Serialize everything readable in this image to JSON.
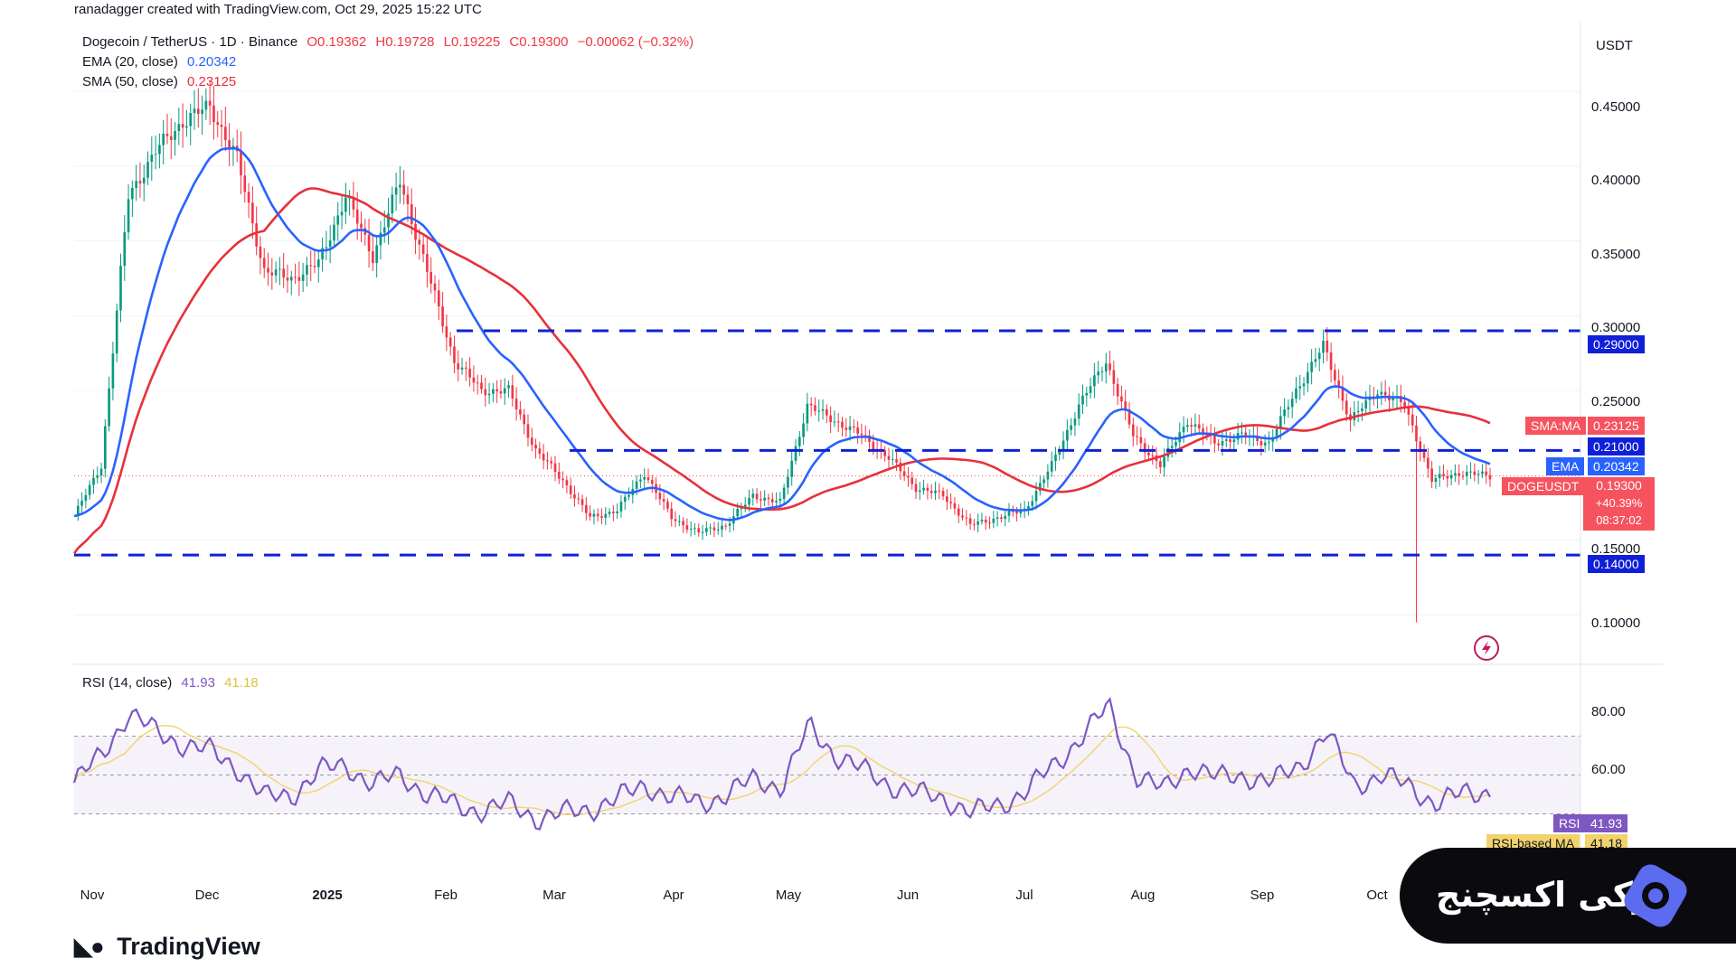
{
  "attribution": "ranadagger created with TradingView.com, Oct 29, 2025 15:22 UTC",
  "symbol_line": {
    "name": "Dogecoin / TetherUS · 1D · Binance",
    "open": "O0.19362",
    "high": "H0.19728",
    "low": "L0.19225",
    "close": "C0.19300",
    "change": "−0.00062 (−0.32%)"
  },
  "ema_legend": {
    "label": "EMA (20, close)",
    "value": "0.20342"
  },
  "sma_legend": {
    "label": "SMA (50, close)",
    "value": "0.23125"
  },
  "rsi_legend": {
    "label": "RSI (14, close)",
    "value": "41.93",
    "ma_value": "41.18"
  },
  "currency": "USDT",
  "price_axis_ticks": [
    "0.45000",
    "0.40000",
    "0.35000",
    "0.30000",
    "0.25000",
    "0.15000",
    "0.10000"
  ],
  "rsi_axis_ticks": [
    "80.00",
    "60.00"
  ],
  "x_ticks": [
    "Nov",
    "Dec",
    "2025",
    "Feb",
    "Mar",
    "Apr",
    "May",
    "Jun",
    "Jul",
    "Aug",
    "Sep",
    "Oct"
  ],
  "level_tags": {
    "upper": "0.29000",
    "middle": "0.21000",
    "lower": "0.14000"
  },
  "sma_tag": {
    "label": "SMA:MA",
    "value": "0.23125"
  },
  "ema_tag": {
    "label": "EMA",
    "value": "0.20342"
  },
  "price_tag": {
    "label": "DOGEUSDT",
    "value": "0.19300",
    "change": "+40.39%",
    "countdown": "08:37:02"
  },
  "rsi_tag": {
    "label": "RSI",
    "value": "41.93"
  },
  "rsi_ma_tag": {
    "label": "RSI-based MA",
    "value": "41.18"
  },
  "brand": "TradingView",
  "badge_text": "اوکی اکسچنج",
  "colors": {
    "ema": "#2962ff",
    "sma": "#e8303a",
    "levels": "#1020d8",
    "rsi": "#7e57c2",
    "rsi_ma": "#f2d36b",
    "candle_up": "#089981",
    "candle_down": "#f23645",
    "price_tag": "#f7525f"
  },
  "chart_data": {
    "type": "candlestick",
    "title": "Dogecoin / TetherUS · 1D · Binance",
    "y_range": [
      0.07,
      0.49
    ],
    "horizontal_levels": [
      0.29,
      0.21,
      0.14
    ],
    "close_series_weekly": [
      {
        "date": "2024-10-29",
        "close": 0.166
      },
      {
        "date": "2024-11-05",
        "close": 0.2
      },
      {
        "date": "2024-11-12",
        "close": 0.38
      },
      {
        "date": "2024-11-19",
        "close": 0.41
      },
      {
        "date": "2024-11-26",
        "close": 0.43
      },
      {
        "date": "2024-12-03",
        "close": 0.44
      },
      {
        "date": "2024-12-10",
        "close": 0.405
      },
      {
        "date": "2024-12-17",
        "close": 0.33
      },
      {
        "date": "2024-12-24",
        "close": 0.325
      },
      {
        "date": "2024-12-31",
        "close": 0.335
      },
      {
        "date": "2025-01-07",
        "close": 0.38
      },
      {
        "date": "2025-01-14",
        "close": 0.34
      },
      {
        "date": "2025-01-21",
        "close": 0.39
      },
      {
        "date": "2025-01-28",
        "close": 0.33
      },
      {
        "date": "2025-02-04",
        "close": 0.27
      },
      {
        "date": "2025-02-11",
        "close": 0.25
      },
      {
        "date": "2025-02-18",
        "close": 0.25
      },
      {
        "date": "2025-02-25",
        "close": 0.21
      },
      {
        "date": "2025-03-04",
        "close": 0.19
      },
      {
        "date": "2025-03-11",
        "close": 0.165
      },
      {
        "date": "2025-03-18",
        "close": 0.17
      },
      {
        "date": "2025-03-25",
        "close": 0.195
      },
      {
        "date": "2025-04-01",
        "close": 0.165
      },
      {
        "date": "2025-04-08",
        "close": 0.155
      },
      {
        "date": "2025-04-15",
        "close": 0.16
      },
      {
        "date": "2025-04-22",
        "close": 0.18
      },
      {
        "date": "2025-04-29",
        "close": 0.175
      },
      {
        "date": "2025-05-06",
        "close": 0.24
      },
      {
        "date": "2025-05-13",
        "close": 0.23
      },
      {
        "date": "2025-05-20",
        "close": 0.22
      },
      {
        "date": "2025-05-27",
        "close": 0.205
      },
      {
        "date": "2025-06-03",
        "close": 0.185
      },
      {
        "date": "2025-06-10",
        "close": 0.18
      },
      {
        "date": "2025-06-17",
        "close": 0.16
      },
      {
        "date": "2025-06-24",
        "close": 0.165
      },
      {
        "date": "2025-07-01",
        "close": 0.17
      },
      {
        "date": "2025-07-08",
        "close": 0.2
      },
      {
        "date": "2025-07-15",
        "close": 0.24
      },
      {
        "date": "2025-07-22",
        "close": 0.27
      },
      {
        "date": "2025-07-29",
        "close": 0.22
      },
      {
        "date": "2025-08-05",
        "close": 0.2
      },
      {
        "date": "2025-08-12",
        "close": 0.23
      },
      {
        "date": "2025-08-19",
        "close": 0.215
      },
      {
        "date": "2025-08-26",
        "close": 0.22
      },
      {
        "date": "2025-09-02",
        "close": 0.215
      },
      {
        "date": "2025-09-09",
        "close": 0.25
      },
      {
        "date": "2025-09-16",
        "close": 0.28
      },
      {
        "date": "2025-09-23",
        "close": 0.23
      },
      {
        "date": "2025-09-30",
        "close": 0.25
      },
      {
        "date": "2025-10-07",
        "close": 0.24
      },
      {
        "date": "2025-10-14",
        "close": 0.19
      },
      {
        "date": "2025-10-21",
        "close": 0.195
      },
      {
        "date": "2025-10-29",
        "close": 0.193
      }
    ],
    "notable_lows": [
      {
        "date": "2025-10-10",
        "low": 0.095
      }
    ],
    "ema_20_last": 0.20342,
    "sma_50_last": 0.23125,
    "rsi": {
      "period": 14,
      "last": 41.93,
      "ma_last": 41.18,
      "bands": [
        70,
        50,
        30
      ],
      "weekly": [
        46,
        60,
        82,
        72,
        66,
        62,
        54,
        38,
        40,
        52,
        55,
        45,
        50,
        40,
        34,
        32,
        35,
        28,
        30,
        33,
        38,
        45,
        38,
        36,
        40,
        48,
        44,
        75,
        60,
        52,
        45,
        40,
        38,
        30,
        35,
        42,
        55,
        70,
        85,
        50,
        42,
        55,
        48,
        50,
        46,
        55,
        72,
        45,
        50,
        44,
        36,
        40,
        41.93
      ]
    }
  }
}
